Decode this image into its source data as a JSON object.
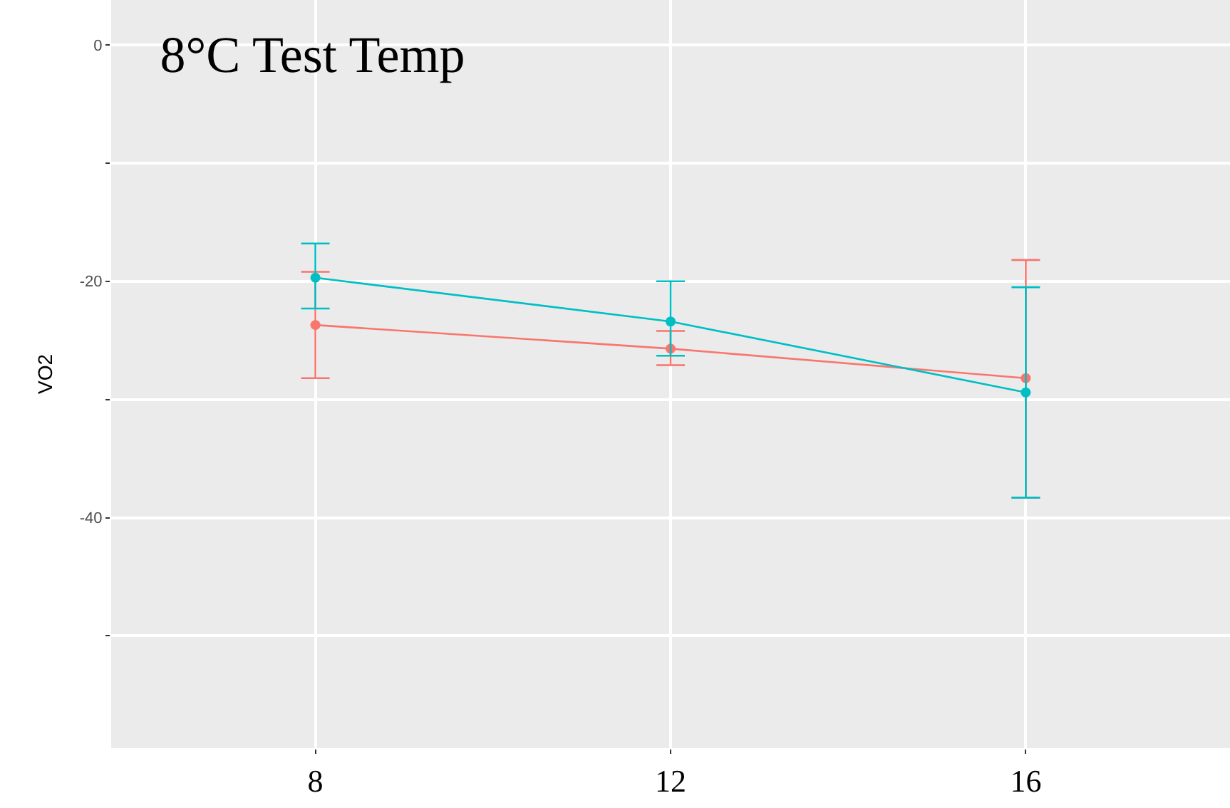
{
  "chart_data": {
    "type": "line",
    "title": "8°C Test Temp",
    "ylabel": "VO2",
    "x": [
      8,
      12,
      16
    ],
    "series": [
      {
        "color": "#f8766d",
        "values": [
          -23.7,
          -25.7,
          -28.2
        ],
        "errors": [
          [
            -28.2,
            -19.2
          ],
          [
            -27.1,
            -24.2
          ],
          [
            -38.3,
            -18.2
          ]
        ]
      },
      {
        "color": "#00bfc4",
        "values": [
          -19.7,
          -23.4,
          -29.4
        ],
        "errors": [
          [
            -22.3,
            -16.8
          ],
          [
            -26.3,
            -20.0
          ],
          [
            -38.3,
            -20.5
          ]
        ]
      }
    ],
    "xlim": [
      5.7,
      18.3
    ],
    "xticks": [
      8,
      12,
      16
    ],
    "ylim": [
      -59.5,
      3.8
    ],
    "yticks": [
      0,
      {
        "value": -10,
        "label": null
      },
      -20,
      {
        "value": -30,
        "label": null
      },
      -40,
      {
        "value": -50,
        "label": null
      }
    ],
    "grid": true,
    "marker": "circle",
    "line_style": "solid"
  }
}
